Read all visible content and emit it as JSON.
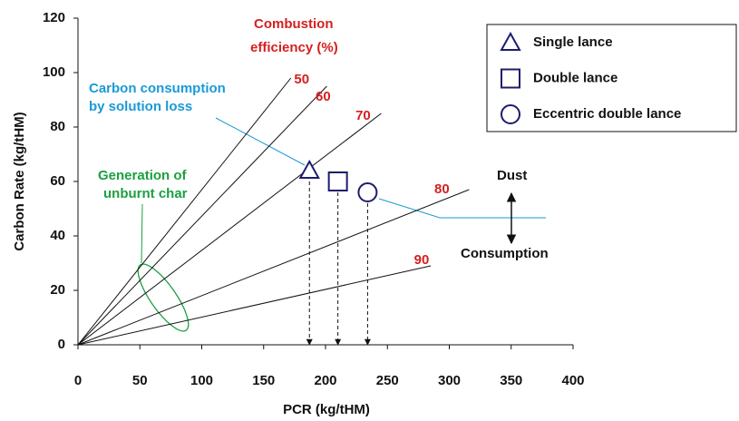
{
  "chart_data": {
    "type": "scatter",
    "x_label": "PCR (kg/tHM)",
    "y_label": "Carbon Rate (kg/tHM)",
    "xlim": [
      0,
      400
    ],
    "ylim": [
      0,
      120
    ],
    "xticks": [
      0,
      50,
      100,
      150,
      200,
      250,
      300,
      350,
      400
    ],
    "yticks": [
      0,
      20,
      40,
      60,
      80,
      100,
      120
    ],
    "efficiency_title": [
      "Combustion",
      "efficiency (%)"
    ],
    "efficiency_lines": [
      {
        "name": "50",
        "x": [
          0,
          172
        ],
        "values": [
          0,
          98
        ]
      },
      {
        "name": "60",
        "x": [
          0,
          201
        ],
        "values": [
          0,
          95
        ]
      },
      {
        "name": "70",
        "x": [
          0,
          245
        ],
        "values": [
          0,
          85
        ]
      },
      {
        "name": "80",
        "x": [
          0,
          316
        ],
        "values": [
          0,
          57
        ]
      },
      {
        "name": "90",
        "x": [
          0,
          285
        ],
        "values": [
          0,
          29
        ]
      }
    ],
    "series": [
      {
        "name": "Single lance",
        "marker": "triangle",
        "color": "#1c1c6e",
        "x": [
          187
        ],
        "values": [
          64
        ]
      },
      {
        "name": "Double lance",
        "marker": "square",
        "color": "#1c1c6e",
        "x": [
          210
        ],
        "values": [
          60
        ]
      },
      {
        "name": "Eccentric double lance",
        "marker": "circle",
        "color": "#1c1c6e",
        "x": [
          234
        ],
        "values": [
          56
        ]
      }
    ],
    "annotations": {
      "solution_loss": [
        "Carbon consumption",
        "by solution loss"
      ],
      "unburnt": [
        "Generation of",
        "unburnt char"
      ],
      "dust": "Dust",
      "consumption": "Consumption"
    }
  }
}
